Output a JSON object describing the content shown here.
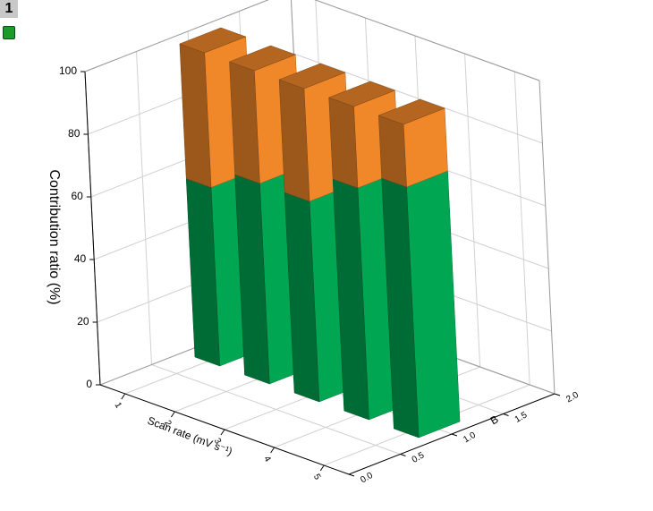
{
  "page_label": "1",
  "chart_data": {
    "type": "bar3d",
    "ylabel": "Contribution ratio (%)",
    "xlabel": "Scan rate (mV s⁻¹)",
    "depth_label": "B",
    "categories": [
      "1",
      "2",
      "3",
      "4",
      "5"
    ],
    "series": [
      {
        "color": "#00a651",
        "values": [
          57,
          64,
          64,
          74,
          80
        ]
      },
      {
        "color": "#f0882a",
        "values": [
          43,
          36,
          36,
          26,
          20
        ]
      }
    ],
    "ylim": [
      0,
      100
    ],
    "yticks": [
      0,
      20,
      40,
      60,
      80,
      100
    ],
    "depth_lim": [
      0,
      2
    ],
    "depth_ticks": [
      {
        "value": 0,
        "label": "0.0"
      },
      {
        "value": 0.5,
        "label": "0.5"
      },
      {
        "value": 1,
        "label": "1.0"
      },
      {
        "value": 1.5,
        "label": "1.5"
      },
      {
        "value": 2,
        "label": "2.0"
      }
    ],
    "grid": true
  }
}
